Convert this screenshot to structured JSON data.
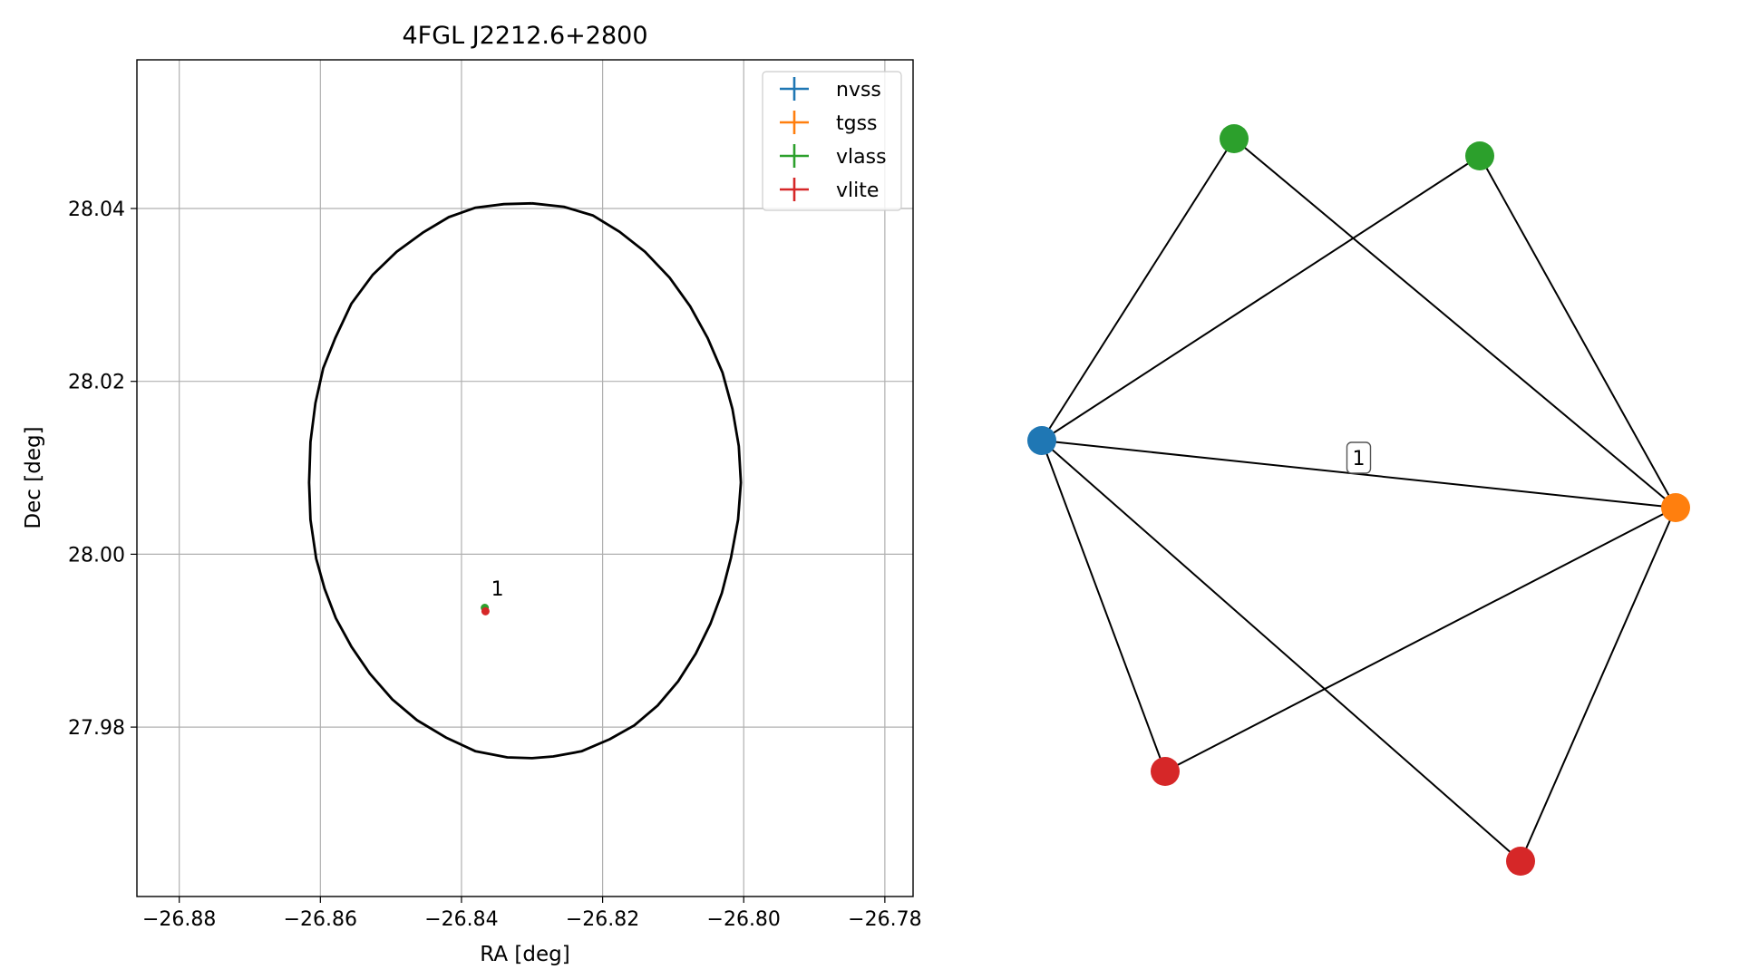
{
  "chart_data": [
    {
      "type": "scatter",
      "title": "4FGL J2212.6+2800",
      "xlabel": "RA [deg]",
      "ylabel": "Dec [deg]",
      "xlim": [
        -26.886,
        -26.776
      ],
      "ylim": [
        27.9604,
        28.0572
      ],
      "xticks": [
        -26.88,
        -26.86,
        -26.84,
        -26.82,
        -26.8,
        -26.78
      ],
      "xtick_labels": [
        "−26.88",
        "−26.86",
        "−26.84",
        "−26.82",
        "−26.80",
        "−26.78"
      ],
      "yticks": [
        27.98,
        28.0,
        28.02,
        28.04
      ],
      "ytick_labels": [
        "27.98",
        "28.00",
        "28.02",
        "28.04"
      ],
      "grid": true,
      "legend_position": "top-right",
      "series": [
        {
          "name": "nvss",
          "color": "#1f77b4",
          "points": []
        },
        {
          "name": "tgss",
          "color": "#ff7f0e",
          "points": []
        },
        {
          "name": "vlass",
          "color": "#2ca02c",
          "points": [
            {
              "x": -26.8367,
              "y": 27.9938
            }
          ]
        },
        {
          "name": "vlite",
          "color": "#d62728",
          "points": [
            {
              "x": -26.8366,
              "y": 27.9934
            }
          ]
        }
      ],
      "annotations": [
        {
          "text": "1",
          "x": -26.8358,
          "y": 27.9952
        }
      ],
      "ellipse": {
        "color": "#000000",
        "points": [
          [
            -26.83,
            28.0406
          ],
          [
            -26.8255,
            28.0402
          ],
          [
            -26.8214,
            28.0392
          ],
          [
            -26.8176,
            28.0373
          ],
          [
            -26.814,
            28.035
          ],
          [
            -26.8105,
            28.032
          ],
          [
            -26.8076,
            28.0287
          ],
          [
            -26.8051,
            28.025
          ],
          [
            -26.803,
            28.021
          ],
          [
            -26.8016,
            28.0168
          ],
          [
            -26.8007,
            28.0125
          ],
          [
            -26.8004,
            28.0083
          ],
          [
            -26.8008,
            28.004
          ],
          [
            -26.8018,
            27.9996
          ],
          [
            -26.8031,
            27.9955
          ],
          [
            -26.8047,
            27.992
          ],
          [
            -26.8068,
            27.9885
          ],
          [
            -26.8093,
            27.9853
          ],
          [
            -26.8122,
            27.9825
          ],
          [
            -26.8155,
            27.9802
          ],
          [
            -26.819,
            27.9786
          ],
          [
            -26.823,
            27.9772
          ],
          [
            -26.827,
            27.9766
          ],
          [
            -26.83,
            27.9764
          ],
          [
            -26.8335,
            27.9765
          ],
          [
            -26.838,
            27.9772
          ],
          [
            -26.8422,
            27.9788
          ],
          [
            -26.8463,
            27.9808
          ],
          [
            -26.8498,
            27.9832
          ],
          [
            -26.853,
            27.9862
          ],
          [
            -26.8556,
            27.9893
          ],
          [
            -26.8578,
            27.9926
          ],
          [
            -26.8594,
            27.996
          ],
          [
            -26.8606,
            27.9995
          ],
          [
            -26.8614,
            28.004
          ],
          [
            -26.8616,
            28.0083
          ],
          [
            -26.8614,
            28.013
          ],
          [
            -26.8607,
            28.0175
          ],
          [
            -26.8596,
            28.0215
          ],
          [
            -26.8579,
            28.025
          ],
          [
            -26.8556,
            28.029
          ],
          [
            -26.8526,
            28.0323
          ],
          [
            -26.8492,
            28.035
          ],
          [
            -26.8455,
            28.0372
          ],
          [
            -26.8418,
            28.039
          ],
          [
            -26.838,
            28.0401
          ],
          [
            -26.834,
            28.0405
          ],
          [
            -26.83,
            28.0406
          ]
        ]
      }
    },
    {
      "type": "network",
      "nodes": [
        {
          "id": "n0",
          "survey": "nvss",
          "color": "#1f77b4"
        },
        {
          "id": "n1",
          "survey": "tgss",
          "color": "#ff7f0e"
        },
        {
          "id": "n2",
          "survey": "vlass",
          "color": "#2ca02c"
        },
        {
          "id": "n3",
          "survey": "vlass",
          "color": "#2ca02c"
        },
        {
          "id": "n4",
          "survey": "vlite",
          "color": "#d62728"
        },
        {
          "id": "n5",
          "survey": "vlite",
          "color": "#d62728"
        }
      ],
      "edges": [
        {
          "source": "n0",
          "target": "n1",
          "label": "1"
        },
        {
          "source": "n0",
          "target": "n2",
          "label": ""
        },
        {
          "source": "n0",
          "target": "n3",
          "label": ""
        },
        {
          "source": "n0",
          "target": "n4",
          "label": ""
        },
        {
          "source": "n0",
          "target": "n5",
          "label": ""
        },
        {
          "source": "n1",
          "target": "n2",
          "label": ""
        },
        {
          "source": "n1",
          "target": "n3",
          "label": ""
        },
        {
          "source": "n1",
          "target": "n4",
          "label": ""
        },
        {
          "source": "n1",
          "target": "n5",
          "label": ""
        }
      ]
    }
  ]
}
